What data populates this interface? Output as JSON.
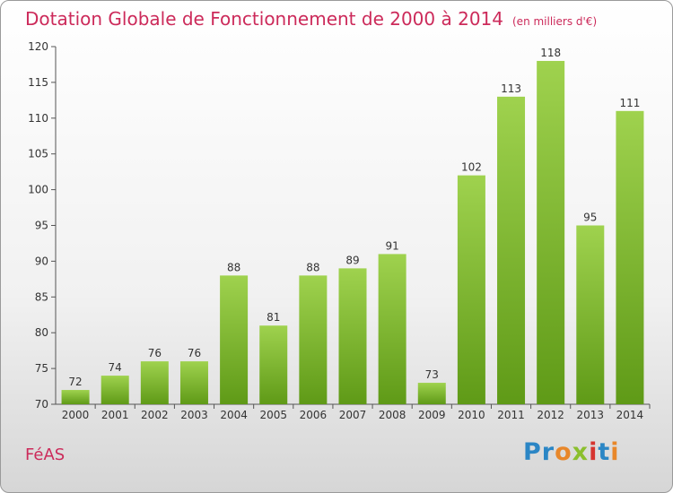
{
  "title": "Dotation Globale de Fonctionnement de 2000 à 2014",
  "subtitle": "(en milliers d'€)",
  "commune": "FéAS",
  "logo": {
    "p1": "Pr",
    "p2": "o",
    "p3": "x",
    "p4": "i",
    "p5": "t",
    "p6": "i"
  },
  "colors": {
    "bar_top": "#9fd24e",
    "bar_bottom": "#5f9a17",
    "title": "#cc2a5a"
  },
  "chart_data": {
    "type": "bar",
    "categories": [
      "2000",
      "2001",
      "2002",
      "2003",
      "2004",
      "2005",
      "2006",
      "2007",
      "2008",
      "2009",
      "2010",
      "2011",
      "2012",
      "2013",
      "2014"
    ],
    "values": [
      72,
      74,
      76,
      76,
      88,
      81,
      88,
      89,
      91,
      73,
      102,
      113,
      118,
      95,
      111
    ],
    "ylim": [
      70,
      120
    ],
    "yticks": [
      70,
      75,
      80,
      85,
      90,
      95,
      100,
      105,
      110,
      115,
      120
    ],
    "grid": false,
    "xlabel": "",
    "ylabel": ""
  }
}
